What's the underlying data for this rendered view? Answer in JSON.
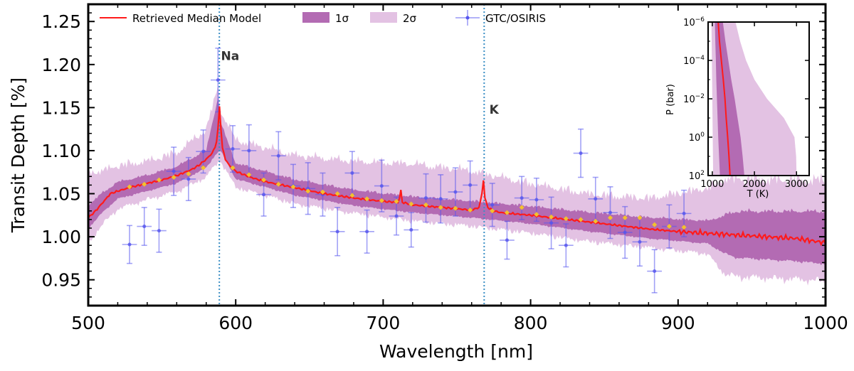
{
  "chart_data": [
    {
      "type": "line",
      "name": "transmission-spectrum",
      "xlabel": "Wavelength [nm]",
      "ylabel": "Transit Depth [%]",
      "xlim": [
        500,
        1000
      ],
      "ylim": [
        0.92,
        1.27
      ],
      "x_ticks": [
        500,
        600,
        700,
        800,
        900,
        1000
      ],
      "y_ticks": [
        0.95,
        1.0,
        1.05,
        1.1,
        1.15,
        1.2,
        1.25
      ],
      "x_tick_labels": [
        "500",
        "600",
        "700",
        "800",
        "900",
        "1000"
      ],
      "y_tick_labels": [
        "0.95",
        "1.00",
        "1.05",
        "1.10",
        "1.15",
        "1.20",
        "1.25"
      ],
      "legend_position": "top",
      "legend": {
        "median": "Retrieved Median Model",
        "sigma1": "1σ",
        "sigma2": "2σ",
        "data": "GTC/OSIRIS"
      },
      "annotations": [
        {
          "text": "Na",
          "x": 588.9,
          "label_x": 590,
          "label_y": 1.205
        },
        {
          "text": "K",
          "x": 768.5,
          "label_x": 772,
          "label_y": 1.143
        }
      ],
      "model_median": {
        "x": [
          500,
          505,
          510,
          515,
          520,
          530,
          540,
          550,
          560,
          570,
          575,
          580,
          584,
          586,
          587.5,
          588.5,
          589.2,
          590,
          591,
          593,
          596,
          600,
          610,
          620,
          640,
          660,
          680,
          700,
          710,
          711.5,
          712,
          713,
          720,
          740,
          760,
          765,
          767,
          768,
          769,
          771,
          775,
          780,
          800,
          820,
          840,
          860,
          880,
          900,
          920,
          940,
          960,
          980,
          1000
        ],
        "y": [
          1.022,
          1.03,
          1.04,
          1.05,
          1.053,
          1.058,
          1.062,
          1.066,
          1.071,
          1.078,
          1.083,
          1.09,
          1.097,
          1.104,
          1.115,
          1.135,
          1.158,
          1.125,
          1.103,
          1.09,
          1.082,
          1.076,
          1.069,
          1.064,
          1.057,
          1.05,
          1.045,
          1.041,
          1.04,
          1.046,
          1.054,
          1.04,
          1.037,
          1.034,
          1.031,
          1.034,
          1.05,
          1.066,
          1.045,
          1.034,
          1.03,
          1.028,
          1.025,
          1.021,
          1.017,
          1.013,
          1.009,
          1.006,
          1.004,
          1.002,
          1.0,
          0.998,
          0.993
        ]
      },
      "band_1sigma": {
        "x": [
          500,
          510,
          520,
          540,
          560,
          580,
          588,
          590,
          600,
          640,
          680,
          720,
          760,
          800,
          840,
          880,
          920,
          930,
          940,
          980,
          1000
        ],
        "lower": [
          1.01,
          1.03,
          1.045,
          1.054,
          1.063,
          1.081,
          1.1,
          1.1,
          1.068,
          1.049,
          1.037,
          1.029,
          1.023,
          1.016,
          1.007,
          0.999,
          0.993,
          0.983,
          0.977,
          0.973,
          0.97
        ],
        "upper": [
          1.035,
          1.05,
          1.062,
          1.07,
          1.08,
          1.099,
          1.16,
          1.13,
          1.084,
          1.065,
          1.053,
          1.045,
          1.04,
          1.034,
          1.027,
          1.021,
          1.017,
          1.022,
          1.027,
          1.027,
          1.027
        ]
      },
      "band_2sigma": {
        "x": [
          500,
          510,
          520,
          540,
          560,
          580,
          588,
          590,
          600,
          640,
          680,
          720,
          760,
          800,
          840,
          880,
          920,
          930,
          940,
          980,
          1000
        ],
        "lower": [
          0.995,
          1.018,
          1.035,
          1.046,
          1.055,
          1.072,
          1.09,
          1.09,
          1.06,
          1.041,
          1.03,
          1.021,
          1.015,
          1.007,
          0.997,
          0.99,
          0.983,
          0.962,
          0.958,
          0.955,
          0.953
        ],
        "upper": [
          1.07,
          1.072,
          1.078,
          1.083,
          1.093,
          1.12,
          1.17,
          1.14,
          1.108,
          1.09,
          1.083,
          1.08,
          1.072,
          1.057,
          1.045,
          1.04,
          1.052,
          1.06,
          1.06,
          1.058,
          1.058
        ]
      },
      "binned_model": {
        "x": [
          528,
          538,
          548,
          558,
          568,
          578,
          598,
          609,
          619,
          629,
          639,
          649,
          659,
          669,
          679,
          689,
          699,
          709,
          719,
          729,
          739,
          749,
          759,
          774,
          784,
          794,
          804,
          814,
          824,
          834,
          844,
          854,
          864,
          874,
          884,
          894,
          904
        ],
        "y": [
          1.058,
          1.061,
          1.066,
          1.069,
          1.073,
          1.08,
          1.08,
          1.072,
          1.066,
          1.061,
          1.058,
          1.053,
          1.052,
          1.05,
          1.048,
          1.044,
          1.042,
          1.041,
          1.038,
          1.037,
          1.034,
          1.033,
          1.031,
          1.03,
          1.028,
          1.034,
          1.026,
          1.023,
          1.021,
          1.02,
          1.018,
          1.022,
          1.022,
          1.022,
          1.014,
          1.012,
          1.011
        ]
      },
      "observations": {
        "x": [
          528,
          538,
          548,
          558,
          568,
          578,
          588,
          598,
          609,
          619,
          629,
          639,
          649,
          659,
          669,
          679,
          689,
          699,
          709,
          719,
          729,
          739,
          749,
          759,
          774,
          784,
          794,
          804,
          814,
          824,
          834,
          844,
          854,
          864,
          874,
          884,
          894,
          904
        ],
        "y": [
          0.991,
          1.012,
          1.007,
          1.076,
          1.067,
          1.099,
          1.182,
          1.102,
          1.1,
          1.049,
          1.094,
          1.059,
          1.056,
          1.049,
          1.006,
          1.074,
          1.006,
          1.059,
          1.024,
          1.008,
          1.045,
          1.044,
          1.052,
          1.06,
          1.037,
          0.996,
          1.045,
          1.043,
          1.016,
          0.99,
          1.097,
          1.044,
          1.028,
          1.005,
          0.994,
          0.96,
          1.012,
          1.027
        ],
        "yerr": [
          0.022,
          0.022,
          0.025,
          0.028,
          0.025,
          0.025,
          0.037,
          0.027,
          0.03,
          0.025,
          0.028,
          0.025,
          0.03,
          0.025,
          0.028,
          0.025,
          0.025,
          0.03,
          0.022,
          0.02,
          0.028,
          0.028,
          0.028,
          0.028,
          0.025,
          0.022,
          0.025,
          0.025,
          0.03,
          0.025,
          0.028,
          0.025,
          0.03,
          0.03,
          0.028,
          0.025,
          0.025,
          0.027
        ],
        "xerr": 5
      },
      "colors": {
        "median": "#ff1a1a",
        "sigma1": "#b36bb3",
        "sigma2": "#e3c2e3",
        "data": "#5555ee",
        "binned": "#f2c12e",
        "vline": "#3b8fc4",
        "annotation": "#333333"
      }
    },
    {
      "type": "line",
      "name": "pt-profile-inset",
      "xlabel": "T (K)",
      "ylabel": "P (bar)",
      "xlim": [
        900,
        3300
      ],
      "log_p_range": [
        -6,
        2
      ],
      "x_ticks": [
        1000,
        2000,
        3000
      ],
      "x_tick_labels": [
        "1000",
        "2000",
        "3000"
      ],
      "y_ticks_logp": [
        -6,
        -4,
        -2,
        0,
        2
      ],
      "y_tick_mantissa": [
        "10",
        "10",
        "10",
        "10",
        "10"
      ],
      "y_tick_exponent": [
        "−6",
        "−4",
        "−2",
        "0",
        "2"
      ],
      "median": {
        "logp": [
          -6,
          -5,
          -4,
          -3,
          -2,
          -1,
          0,
          1,
          2
        ],
        "T": [
          1140,
          1170,
          1215,
          1260,
          1300,
          1330,
          1365,
          1395,
          1420
        ]
      },
      "band_1sigma": {
        "logp": [
          -6,
          -5,
          -4,
          -3,
          -2,
          -1,
          0,
          1,
          2
        ],
        "T_low": [
          1060,
          1070,
          1085,
          1095,
          1110,
          1125,
          1140,
          1160,
          1180
        ],
        "T_high": [
          1250,
          1310,
          1380,
          1450,
          1530,
          1600,
          1670,
          1720,
          1760
        ]
      },
      "band_2sigma": {
        "logp": [
          -6,
          -5,
          -4,
          -3,
          -2,
          -1,
          0,
          1,
          2
        ],
        "T_low": [
          980,
          985,
          990,
          995,
          1000,
          1005,
          1010,
          1015,
          1020
        ],
        "T_high": [
          1550,
          1660,
          1800,
          2000,
          2300,
          2700,
          2950,
          2990,
          3000
        ]
      }
    }
  ]
}
